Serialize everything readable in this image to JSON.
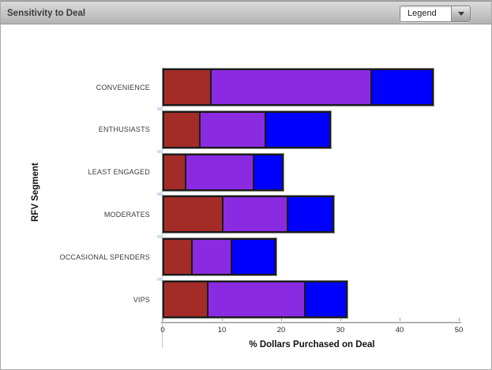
{
  "header": {
    "title": "Sensitivity to Deal",
    "legend_dropdown": {
      "value": "Legend",
      "state": "collapsed"
    }
  },
  "chart_data": {
    "type": "bar",
    "orientation": "horizontal",
    "stacked": true,
    "title": "Sensitivity to Deal",
    "xlabel": "% Dollars Purchased on Deal",
    "ylabel": "RFV Segment",
    "xlim": [
      0,
      50
    ],
    "xticks": [
      0,
      10,
      20,
      30,
      40,
      50
    ],
    "grid": false,
    "legend_position": "collapsed-dropdown",
    "categories": [
      "CONVENIENCE",
      "ENTHUSIASTS",
      "LEAST ENGAGED",
      "MODERATES",
      "OCCASIONAL SPENDERS",
      "VIPS"
    ],
    "series": [
      {
        "name": "Red segment",
        "color": "#A42C28",
        "values": [
          8.3,
          6.4,
          4.0,
          10.3,
          5.1,
          7.7
        ]
      },
      {
        "name": "Purple segment",
        "color": "#8A2BE2",
        "values": [
          27.3,
          11.3,
          11.7,
          11.2,
          6.9,
          16.7
        ]
      },
      {
        "name": "Blue segment",
        "color": "#0000FF",
        "values": [
          10.7,
          11.2,
          5.2,
          8.0,
          7.7,
          7.3
        ]
      }
    ],
    "totals": [
      46.3,
      28.9,
      20.9,
      29.5,
      19.7,
      31.7
    ]
  }
}
